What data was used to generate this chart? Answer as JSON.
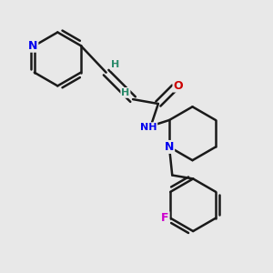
{
  "background_color": "#e8e8e8",
  "bond_color": "#1a1a1a",
  "atom_colors": {
    "N": "#0000ee",
    "O": "#cc0000",
    "F": "#cc00cc",
    "H": "#2a8a6a",
    "C": "#1a1a1a"
  },
  "figsize": [
    3.0,
    3.0
  ],
  "dpi": 100
}
